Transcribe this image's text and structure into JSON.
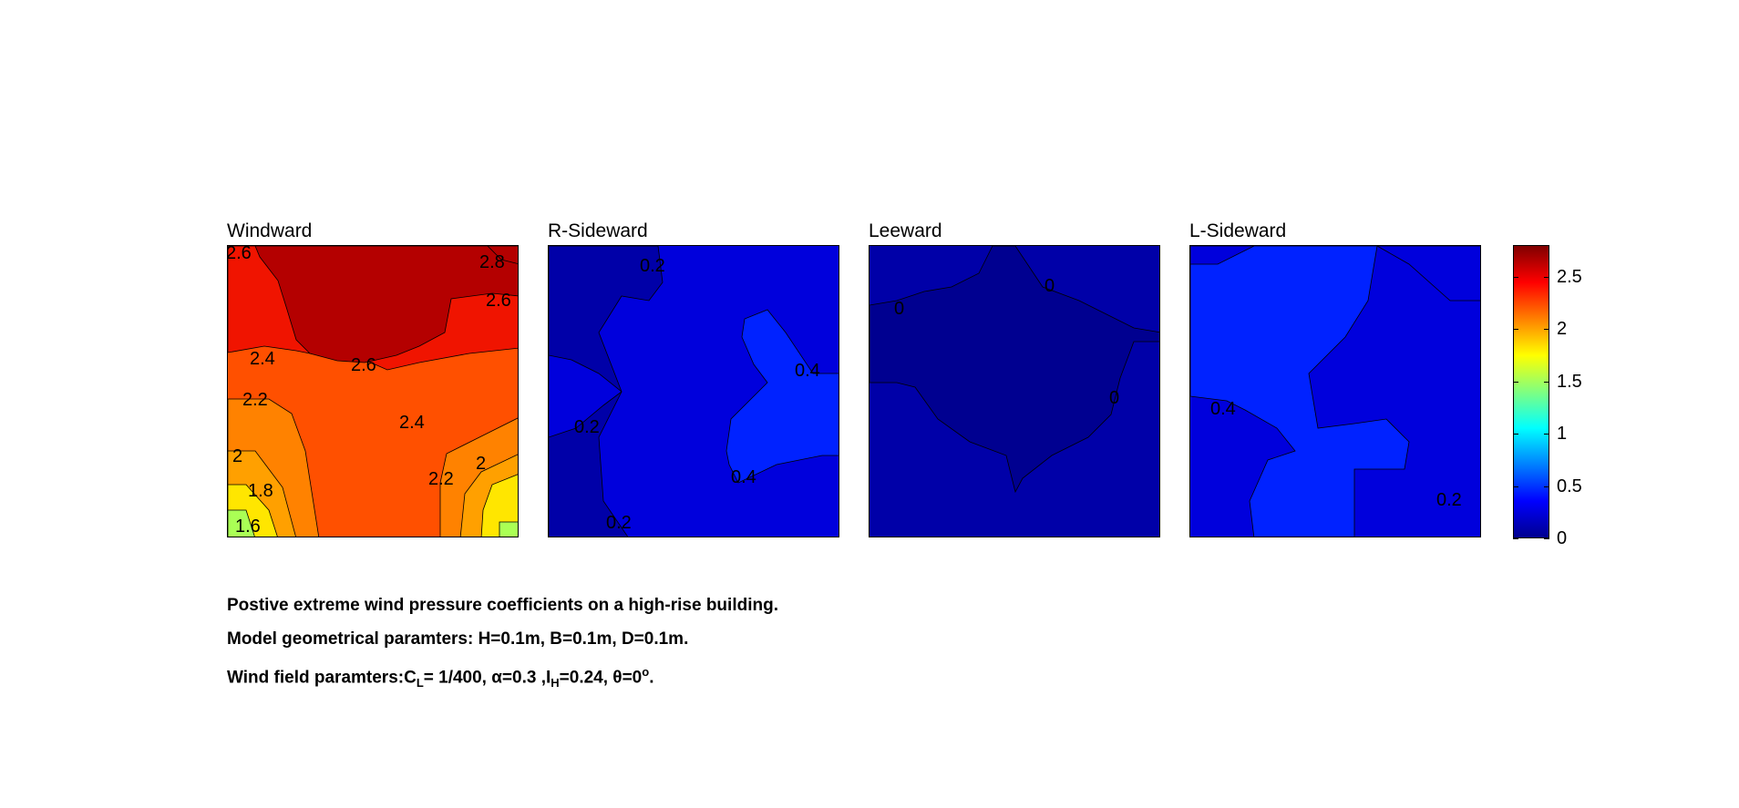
{
  "panels": [
    {
      "id": "windward",
      "title": "Windward"
    },
    {
      "id": "r-sideward",
      "title": "R-Sideward"
    },
    {
      "id": "leeward",
      "title": "Leeward"
    },
    {
      "id": "l-sideward",
      "title": "L-Sideward"
    }
  ],
  "chart_data": {
    "type": "heatmap",
    "subtype": "filled-contour",
    "colormap": "jet",
    "colorbar": {
      "min": 0,
      "max": 2.8,
      "ticks": [
        "0",
        "0.5",
        "1",
        "1.5",
        "2",
        "2.5"
      ],
      "placement": "right"
    },
    "grid": false,
    "panels": [
      {
        "title": "Windward",
        "contour_labels": [
          "2.6",
          "2.8",
          "2.6",
          "2.4",
          "2.6",
          "2.2",
          "2.4",
          "2",
          "1.8",
          "2.2",
          "2",
          "1.6"
        ],
        "value_range": [
          1.6,
          2.8
        ]
      },
      {
        "title": "R-Sideward",
        "contour_labels": [
          "0.2",
          "0.4",
          "0.2",
          "0.4",
          "0.2"
        ],
        "value_range": [
          0,
          0.5
        ]
      },
      {
        "title": "Leeward",
        "contour_labels": [
          "0",
          "0",
          "0"
        ],
        "value_range": [
          -0.1,
          0.2
        ]
      },
      {
        "title": "L-Sideward",
        "contour_labels": [
          "0.4",
          "0.2"
        ],
        "value_range": [
          0.2,
          0.5
        ]
      }
    ],
    "colors": {
      "c_neg": "#000090",
      "c0": "#0000A8",
      "c02": "#0000DC",
      "c04": "#0022FF",
      "c16": "#AAFF55",
      "c18": "#FFE600",
      "c20": "#FFA000",
      "c22": "#FF8200",
      "c24": "#FF5000",
      "c26": "#F01400",
      "c28": "#B40000"
    }
  },
  "caption": {
    "line1": "Postive extreme  wind pressure coefficients on a high-rise building.",
    "line2": "Model geometrical paramters: H=0.1m, B=0.1m, D=0.1m.",
    "line3_a": "Wind field paramters:C",
    "line3_sub1": "L",
    "line3_b": "= 1/400, α=0.3 ,I",
    "line3_sub2": "H",
    "line3_c": "=0.24, θ=0",
    "line3_sup": "o",
    "line3_d": "."
  }
}
